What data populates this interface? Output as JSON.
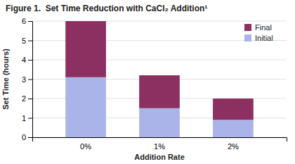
{
  "chart_data": {
    "type": "bar",
    "stacked": true,
    "title": "Figure 1.  Set Time Reduction with CaCl₂ Addition¹",
    "xlabel": "Addition Rate",
    "ylabel": "Set Time (hours)",
    "categories": [
      "0%",
      "1%",
      "2%"
    ],
    "series": [
      {
        "name": "Initial",
        "color": "#aab4e8",
        "values": [
          3.1,
          1.5,
          0.9
        ]
      },
      {
        "name": "Final",
        "color": "#8b3060",
        "values": [
          2.9,
          1.7,
          1.1
        ]
      }
    ],
    "ylim": [
      0,
      6
    ],
    "yticks": [
      0,
      1,
      2,
      3,
      4,
      5,
      6
    ],
    "grid": true,
    "legend": "upper right"
  }
}
